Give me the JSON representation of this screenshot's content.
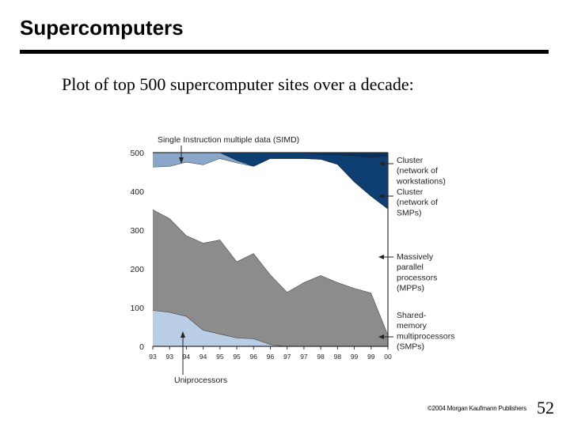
{
  "slide": {
    "title": "Supercomputers",
    "subtitle": "Plot of top 500 supercomputer sites over a decade:",
    "footer": "©2004 Morgan Kaufmann Publishers",
    "page_number": "52"
  },
  "chart_data": {
    "type": "area",
    "stacked": true,
    "x": [
      "93",
      "93",
      "94",
      "94",
      "95",
      "95",
      "96",
      "96",
      "97",
      "97",
      "98",
      "98",
      "99",
      "99",
      "00"
    ],
    "ylim": [
      0,
      500
    ],
    "yticks": [
      0,
      100,
      200,
      300,
      400,
      500
    ],
    "grid": false,
    "series": [
      {
        "name": "Uniprocessors",
        "color": "#b9cde4",
        "values": [
          93,
          88,
          78,
          42,
          32,
          22,
          20,
          5,
          0,
          0,
          0,
          0,
          0,
          0,
          0
        ]
      },
      {
        "name": "Shared-memory multiprocessors (SMPs)",
        "color": "#8c8c8c",
        "values": [
          260,
          242,
          208,
          225,
          243,
          197,
          220,
          180,
          140,
          165,
          183,
          165,
          150,
          138,
          30
        ]
      },
      {
        "name": "Massively parallel processors (MPPs)",
        "color": "#ffffff",
        "values": [
          110,
          135,
          190,
          202,
          210,
          255,
          225,
          300,
          345,
          320,
          300,
          305,
          275,
          250,
          325
        ]
      },
      {
        "name": "Single Instruction multiple data (SIMD)",
        "color": "#8aa7c9",
        "values": [
          37,
          35,
          24,
          31,
          15,
          6,
          0,
          0,
          0,
          0,
          0,
          0,
          0,
          0,
          0
        ]
      },
      {
        "name": "Cluster (network of SMPs)",
        "color": "#0e3f73",
        "values": [
          0,
          0,
          0,
          0,
          0,
          20,
          35,
          15,
          15,
          15,
          12,
          25,
          67,
          100,
          137
        ]
      },
      {
        "name": "Cluster (network of workstations)",
        "color": "#0a2f5c",
        "values": [
          0,
          0,
          0,
          0,
          0,
          0,
          0,
          0,
          0,
          0,
          5,
          5,
          8,
          12,
          8
        ]
      }
    ],
    "legend": [
      {
        "lines": [
          "Cluster",
          "(network of",
          "workstations)"
        ]
      },
      {
        "lines": [
          "Cluster",
          "(network of",
          "SMPs)"
        ]
      },
      {
        "lines": [
          "Massively",
          "parallel",
          "processors",
          "(MPPs)"
        ]
      },
      {
        "lines": [
          "Shared-",
          "memory",
          "multiprocessors",
          "(SMPs)"
        ]
      }
    ],
    "annotations": {
      "top": "Single Instruction multiple data (SIMD)",
      "bottom": "Uniprocessors"
    }
  }
}
